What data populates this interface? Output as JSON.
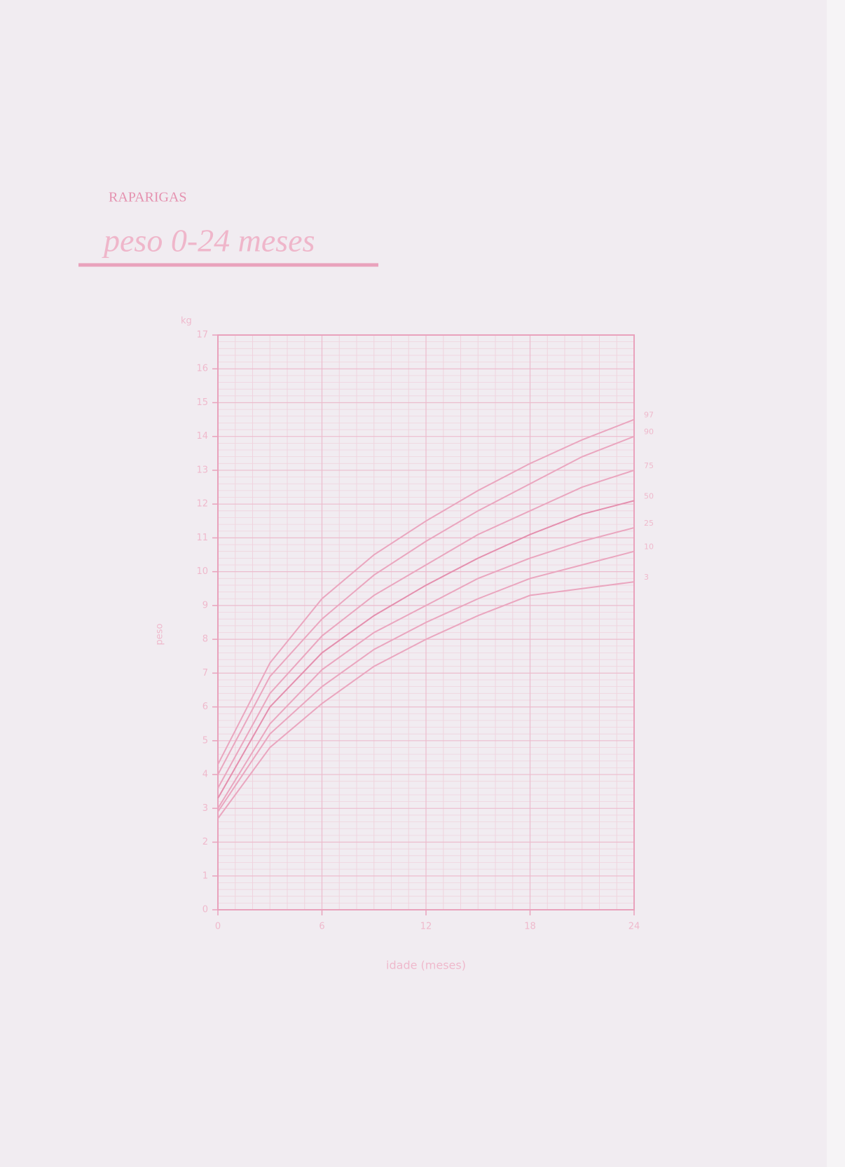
{
  "header": {
    "group": "RAPARIGAS",
    "title": "peso  0-24 meses"
  },
  "chart_data": {
    "type": "line",
    "y_unit": "kg",
    "ylabel": "peso",
    "xlabel": "idade (meses)",
    "x": [
      0,
      3,
      6,
      9,
      12,
      15,
      18,
      21,
      24
    ],
    "series": [
      {
        "name": "97",
        "color": "#eaa6bf",
        "values": [
          4.3,
          7.3,
          9.2,
          10.5,
          11.5,
          12.4,
          13.2,
          13.9,
          14.5
        ]
      },
      {
        "name": "90",
        "color": "#eaa6bf",
        "values": [
          4.0,
          6.9,
          8.6,
          9.9,
          10.9,
          11.8,
          12.6,
          13.4,
          14.0
        ]
      },
      {
        "name": "75",
        "color": "#eaa6bf",
        "values": [
          3.6,
          6.4,
          8.1,
          9.3,
          10.2,
          11.1,
          11.8,
          12.5,
          13.0
        ]
      },
      {
        "name": "50",
        "color": "#e48fae",
        "values": [
          3.3,
          6.0,
          7.6,
          8.7,
          9.6,
          10.4,
          11.1,
          11.7,
          12.1
        ]
      },
      {
        "name": "25",
        "color": "#eaa6bf",
        "values": [
          3.0,
          5.5,
          7.1,
          8.2,
          9.0,
          9.8,
          10.4,
          10.9,
          11.3
        ]
      },
      {
        "name": "10",
        "color": "#eaa6bf",
        "values": [
          2.9,
          5.2,
          6.6,
          7.7,
          8.5,
          9.2,
          9.8,
          10.2,
          10.6
        ]
      },
      {
        "name": "3",
        "color": "#eaa6bf",
        "values": [
          2.7,
          4.8,
          6.1,
          7.2,
          8.0,
          8.7,
          9.3,
          9.5,
          9.7
        ]
      }
    ],
    "xlim": [
      0,
      24
    ],
    "xticks": [
      0,
      6,
      12,
      18,
      24
    ],
    "ylim": [
      0,
      17
    ],
    "yticks": [
      0,
      1,
      2,
      3,
      4,
      5,
      6,
      7,
      8,
      9,
      10,
      11,
      12,
      13,
      14,
      15,
      16,
      17
    ],
    "grid": true
  }
}
